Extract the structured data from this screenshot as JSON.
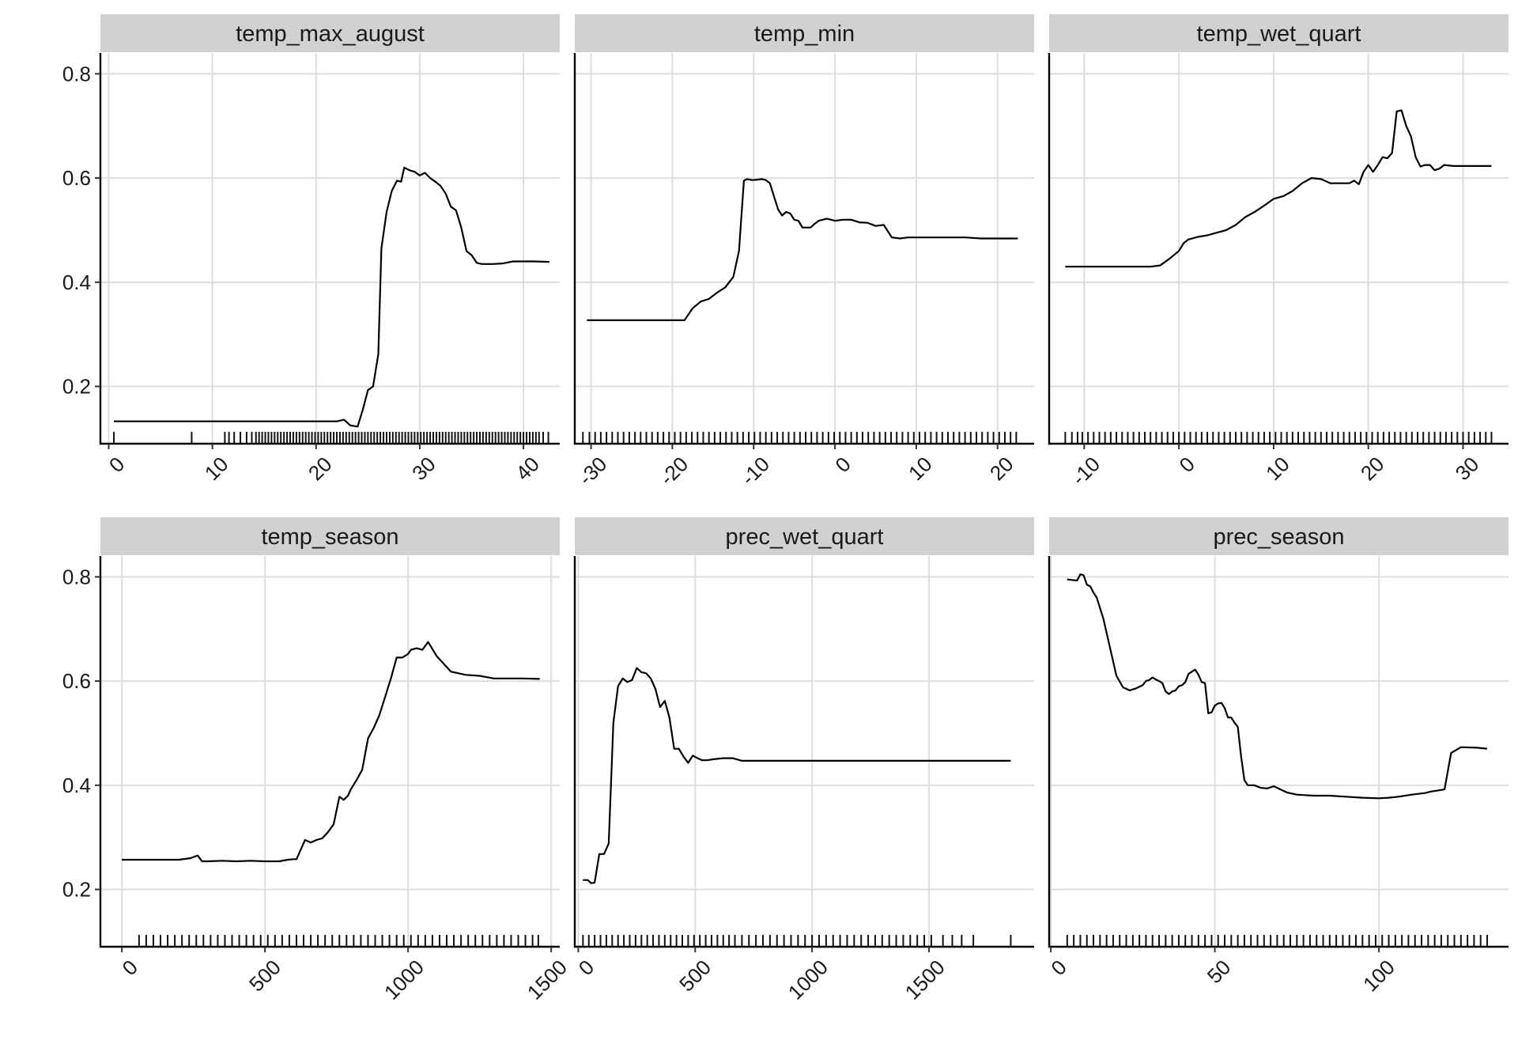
{
  "chart_data": [
    {
      "type": "line",
      "title": "temp_max_august",
      "xlabel": "",
      "ylabel": "",
      "xlim": [
        -0.8,
        43.5
      ],
      "ylim": [
        0.09,
        0.84
      ],
      "xticks": [
        0,
        10,
        20,
        30,
        40
      ],
      "yticks": [
        0.2,
        0.4,
        0.6,
        0.8
      ],
      "ytick_labels": [
        "0.2",
        "0.4",
        "0.6",
        "0.8"
      ],
      "grid": true,
      "x": [
        0.5,
        5,
        10,
        15,
        20,
        22,
        22.7,
        23.3,
        24,
        24.5,
        25,
        25.5,
        26,
        26.3,
        26.8,
        27.3,
        27.8,
        28.2,
        28.5,
        29,
        29.5,
        30,
        30.5,
        31,
        31.5,
        32,
        32.5,
        33,
        33.5,
        34,
        34.5,
        35,
        35.5,
        36,
        37,
        38,
        39,
        40,
        41,
        42.5
      ],
      "y": [
        0.133,
        0.133,
        0.133,
        0.133,
        0.133,
        0.133,
        0.136,
        0.125,
        0.123,
        0.155,
        0.193,
        0.2,
        0.262,
        0.465,
        0.535,
        0.575,
        0.595,
        0.593,
        0.62,
        0.615,
        0.612,
        0.605,
        0.61,
        0.6,
        0.593,
        0.585,
        0.57,
        0.545,
        0.538,
        0.505,
        0.46,
        0.452,
        0.437,
        0.435,
        0.435,
        0.436,
        0.44,
        0.44,
        0.44,
        0.439
      ],
      "rug": [
        0.5,
        8,
        11.2,
        11.6,
        12.1,
        12.7,
        13.3,
        13.8,
        14.2,
        14.5,
        14.8,
        15.1,
        15.4,
        15.7,
        16,
        16.3,
        16.6,
        16.9,
        17.2,
        17.5,
        17.8,
        18.1,
        18.4,
        18.7,
        19,
        19.3,
        19.6,
        19.9,
        20.2,
        20.5,
        20.8,
        21.1,
        21.4,
        21.7,
        22,
        22.3,
        22.6,
        22.9,
        23.2,
        23.5,
        23.8,
        24.1,
        24.4,
        24.7,
        25,
        25.3,
        25.6,
        25.9,
        26.2,
        26.5,
        26.8,
        27.1,
        27.4,
        27.7,
        28,
        28.3,
        28.6,
        28.9,
        29.2,
        29.5,
        29.8,
        30.1,
        30.4,
        30.7,
        31,
        31.3,
        31.6,
        31.9,
        32.2,
        32.5,
        32.8,
        33.1,
        33.4,
        33.7,
        34,
        34.3,
        34.6,
        34.9,
        35.2,
        35.5,
        35.8,
        36.1,
        36.4,
        36.7,
        37,
        37.3,
        37.6,
        37.9,
        38.2,
        38.5,
        38.8,
        39.1,
        39.4,
        39.7,
        40,
        40.3,
        40.6,
        40.9,
        41.2,
        41.5,
        41.9,
        42.4
      ]
    },
    {
      "type": "line",
      "title": "temp_min",
      "xlabel": "",
      "ylabel": "",
      "xlim": [
        -32,
        24.5
      ],
      "ylim": [
        0.09,
        0.84
      ],
      "xticks": [
        -30,
        -20,
        -10,
        0,
        10,
        20
      ],
      "yticks": [
        0.2,
        0.4,
        0.6,
        0.8
      ],
      "ytick_labels": [
        "0.2",
        "0.4",
        "0.6",
        "0.8"
      ],
      "grid": true,
      "x": [
        -30.5,
        -26,
        -22,
        -18.5,
        -17.5,
        -16.5,
        -15.5,
        -14.5,
        -13.5,
        -12.5,
        -11.8,
        -11.2,
        -10.8,
        -10.2,
        -9.5,
        -9,
        -8.5,
        -8,
        -7.5,
        -7,
        -6.5,
        -6,
        -5.5,
        -5,
        -4.5,
        -4,
        -3.5,
        -3,
        -2.5,
        -2,
        -1.5,
        -1,
        0,
        1,
        2,
        3,
        4,
        5,
        6,
        7,
        8,
        9,
        10,
        12,
        14,
        16,
        18,
        20,
        22.5
      ],
      "y": [
        0.327,
        0.327,
        0.327,
        0.327,
        0.35,
        0.363,
        0.368,
        0.38,
        0.39,
        0.41,
        0.46,
        0.595,
        0.598,
        0.596,
        0.597,
        0.598,
        0.596,
        0.59,
        0.565,
        0.54,
        0.528,
        0.535,
        0.532,
        0.52,
        0.518,
        0.505,
        0.505,
        0.505,
        0.512,
        0.518,
        0.52,
        0.522,
        0.518,
        0.52,
        0.52,
        0.515,
        0.514,
        0.508,
        0.51,
        0.486,
        0.484,
        0.486,
        0.486,
        0.486,
        0.486,
        0.486,
        0.484,
        0.484,
        0.484
      ],
      "rug": [
        -31,
        -30.2,
        -29.5,
        -28.8,
        -28.1,
        -27.4,
        -26.7,
        -26,
        -25.3,
        -24.6,
        -23.9,
        -23.2,
        -22.5,
        -21.8,
        -21.1,
        -20.4,
        -19.7,
        -19,
        -18.3,
        -17.6,
        -16.9,
        -16.2,
        -15.5,
        -14.8,
        -14.1,
        -13.4,
        -12.7,
        -12,
        -11.3,
        -10.6,
        -9.9,
        -9.2,
        -8.5,
        -7.8,
        -7.1,
        -6.4,
        -5.7,
        -5,
        -4.3,
        -3.6,
        -2.9,
        -2.2,
        -1.5,
        -0.8,
        -0.1,
        0.6,
        1.3,
        2,
        2.7,
        3.4,
        4.1,
        4.8,
        5.5,
        6.2,
        6.9,
        7.6,
        8.3,
        9,
        9.7,
        10.4,
        11.1,
        11.8,
        12.5,
        13.2,
        13.9,
        14.6,
        15.3,
        16,
        16.7,
        17.4,
        18.1,
        18.8,
        19.5,
        20.2,
        20.9,
        21.6,
        22.3
      ]
    },
    {
      "type": "line",
      "title": "temp_wet_quart",
      "xlabel": "",
      "ylabel": "",
      "xlim": [
        -13.7,
        34.8
      ],
      "ylim": [
        0.09,
        0.84
      ],
      "xticks": [
        -10,
        0,
        10,
        20,
        30
      ],
      "yticks": [
        0.2,
        0.4,
        0.6,
        0.8
      ],
      "ytick_labels": [
        "0.2",
        "0.4",
        "0.6",
        "0.8"
      ],
      "grid": true,
      "x": [
        -12,
        -8,
        -5,
        -3,
        -2,
        -1,
        0,
        0.5,
        1,
        2,
        3,
        4,
        5,
        6,
        7,
        8,
        9,
        10,
        11,
        12,
        13,
        14,
        15,
        16,
        17,
        18,
        18.5,
        19,
        19.5,
        20,
        20.5,
        21,
        21.5,
        22,
        22.5,
        23,
        23.5,
        24,
        24.5,
        25,
        25.5,
        26,
        26.5,
        27,
        27.5,
        28,
        29,
        30,
        31,
        32,
        33
      ],
      "y": [
        0.43,
        0.43,
        0.43,
        0.43,
        0.432,
        0.445,
        0.46,
        0.475,
        0.482,
        0.487,
        0.49,
        0.495,
        0.5,
        0.51,
        0.525,
        0.535,
        0.547,
        0.56,
        0.565,
        0.575,
        0.59,
        0.6,
        0.598,
        0.59,
        0.59,
        0.59,
        0.595,
        0.588,
        0.612,
        0.625,
        0.612,
        0.625,
        0.64,
        0.638,
        0.648,
        0.728,
        0.73,
        0.7,
        0.68,
        0.64,
        0.622,
        0.625,
        0.625,
        0.615,
        0.618,
        0.625,
        0.623,
        0.623,
        0.623,
        0.623,
        0.623
      ],
      "rug": [
        -12,
        -11.3,
        -10.7,
        -10.2,
        -9.6,
        -9,
        -8.4,
        -7.8,
        -7.2,
        -6.6,
        -6,
        -5.4,
        -4.8,
        -4.2,
        -3.6,
        -3,
        -2.4,
        -1.8,
        -1.2,
        -0.6,
        0,
        0.6,
        1.2,
        1.8,
        2.4,
        3,
        3.6,
        4.2,
        4.8,
        5.4,
        6,
        6.6,
        7.2,
        7.8,
        8.4,
        9,
        9.6,
        10.2,
        10.8,
        11.4,
        12,
        12.6,
        13.2,
        13.8,
        14.4,
        15,
        15.6,
        16.2,
        16.8,
        17.4,
        18,
        18.6,
        19.2,
        19.8,
        20.4,
        21,
        21.6,
        22.2,
        22.8,
        23.4,
        24,
        24.6,
        25.2,
        25.8,
        26.4,
        27,
        27.6,
        28.2,
        28.8,
        29.4,
        30,
        30.6,
        31.2,
        31.8,
        32.4,
        33
      ]
    },
    {
      "type": "line",
      "title": "temp_season",
      "xlabel": "",
      "ylabel": "",
      "xlim": [
        -75,
        1530
      ],
      "ylim": [
        0.09,
        0.84
      ],
      "xticks": [
        0,
        500,
        1000,
        1500
      ],
      "yticks": [
        0.2,
        0.4,
        0.6,
        0.8
      ],
      "ytick_labels": [
        "0.2",
        "0.4",
        "0.6",
        "0.8"
      ],
      "grid": true,
      "x": [
        0,
        100,
        200,
        240,
        265,
        280,
        300,
        350,
        400,
        450,
        500,
        550,
        580,
        600,
        610,
        640,
        660,
        680,
        700,
        720,
        740,
        760,
        775,
        790,
        800,
        820,
        840,
        860,
        880,
        900,
        920,
        940,
        960,
        980,
        1000,
        1010,
        1030,
        1050,
        1070,
        1100,
        1150,
        1200,
        1250,
        1300,
        1400,
        1460
      ],
      "y": [
        0.257,
        0.257,
        0.257,
        0.26,
        0.265,
        0.254,
        0.254,
        0.255,
        0.254,
        0.255,
        0.254,
        0.254,
        0.257,
        0.258,
        0.258,
        0.295,
        0.29,
        0.295,
        0.298,
        0.31,
        0.325,
        0.378,
        0.372,
        0.38,
        0.392,
        0.41,
        0.43,
        0.49,
        0.51,
        0.535,
        0.57,
        0.605,
        0.645,
        0.645,
        0.652,
        0.66,
        0.663,
        0.66,
        0.675,
        0.648,
        0.618,
        0.612,
        0.61,
        0.605,
        0.605,
        0.604
      ],
      "rug": [
        60,
        85,
        110,
        135,
        160,
        185,
        210,
        235,
        260,
        285,
        310,
        335,
        360,
        385,
        410,
        435,
        460,
        485,
        510,
        535,
        560,
        585,
        610,
        635,
        660,
        685,
        710,
        735,
        760,
        785,
        810,
        835,
        860,
        885,
        910,
        935,
        960,
        985,
        1010,
        1035,
        1060,
        1085,
        1110,
        1135,
        1160,
        1185,
        1210,
        1235,
        1260,
        1285,
        1310,
        1335,
        1360,
        1385,
        1410,
        1435,
        1455
      ]
    },
    {
      "type": "line",
      "title": "prec_wet_quart",
      "xlabel": "",
      "ylabel": "",
      "xlim": [
        -15,
        1950
      ],
      "ylim": [
        0.09,
        0.84
      ],
      "xticks": [
        0,
        500,
        1000,
        1500
      ],
      "yticks": [
        0.2,
        0.4,
        0.6,
        0.8
      ],
      "ytick_labels": [
        "0.2",
        "0.4",
        "0.6",
        "0.8"
      ],
      "grid": true,
      "x": [
        20,
        40,
        55,
        70,
        90,
        110,
        130,
        150,
        170,
        190,
        210,
        230,
        250,
        270,
        290,
        310,
        330,
        350,
        370,
        390,
        410,
        430,
        450,
        470,
        490,
        510,
        530,
        550,
        580,
        620,
        660,
        700,
        800,
        1000,
        1200,
        1400,
        1600,
        1850
      ],
      "y": [
        0.218,
        0.218,
        0.212,
        0.213,
        0.268,
        0.268,
        0.288,
        0.52,
        0.59,
        0.605,
        0.598,
        0.602,
        0.625,
        0.617,
        0.615,
        0.605,
        0.585,
        0.55,
        0.562,
        0.53,
        0.47,
        0.47,
        0.455,
        0.443,
        0.457,
        0.452,
        0.448,
        0.448,
        0.45,
        0.452,
        0.452,
        0.447,
        0.447,
        0.447,
        0.447,
        0.447,
        0.447,
        0.447
      ],
      "rug": [
        20,
        45,
        70,
        95,
        120,
        145,
        170,
        195,
        220,
        245,
        270,
        295,
        320,
        345,
        370,
        395,
        420,
        445,
        470,
        495,
        520,
        545,
        570,
        595,
        620,
        645,
        670,
        700,
        730,
        760,
        790,
        820,
        850,
        880,
        910,
        940,
        970,
        1000,
        1030,
        1060,
        1090,
        1120,
        1150,
        1180,
        1210,
        1240,
        1270,
        1300,
        1330,
        1360,
        1390,
        1420,
        1450,
        1480,
        1510,
        1560,
        1600,
        1640,
        1690,
        1850
      ]
    },
    {
      "type": "line",
      "title": "prec_season",
      "xlabel": "",
      "ylabel": "",
      "xlim": [
        -0.5,
        139.5
      ],
      "ylim": [
        0.09,
        0.84
      ],
      "xticks": [
        0,
        50,
        100
      ],
      "yticks": [
        0.2,
        0.4,
        0.6,
        0.8
      ],
      "ytick_labels": [
        "0.2",
        "0.4",
        "0.6",
        "0.8"
      ],
      "grid": true,
      "x": [
        5,
        6.5,
        8,
        9,
        10,
        11,
        12,
        13,
        14,
        16,
        18,
        20,
        22,
        24,
        26,
        28,
        29,
        30,
        31,
        32,
        33,
        34,
        35,
        36,
        37,
        38,
        39,
        40,
        41,
        42,
        43,
        44,
        45,
        46,
        47,
        48,
        49,
        50,
        51,
        52,
        53,
        54,
        55,
        56,
        57,
        58,
        59,
        60,
        62,
        64,
        66,
        68,
        70,
        72,
        75,
        80,
        85,
        90,
        95,
        100,
        103,
        106,
        110,
        114,
        116,
        118,
        120,
        122,
        125,
        130,
        133
      ],
      "y": [
        0.795,
        0.794,
        0.793,
        0.805,
        0.803,
        0.785,
        0.782,
        0.77,
        0.76,
        0.72,
        0.665,
        0.61,
        0.588,
        0.582,
        0.586,
        0.592,
        0.6,
        0.602,
        0.607,
        0.603,
        0.6,
        0.596,
        0.58,
        0.575,
        0.58,
        0.582,
        0.59,
        0.592,
        0.598,
        0.614,
        0.618,
        0.622,
        0.612,
        0.598,
        0.596,
        0.538,
        0.54,
        0.553,
        0.557,
        0.558,
        0.548,
        0.53,
        0.53,
        0.52,
        0.512,
        0.455,
        0.41,
        0.4,
        0.4,
        0.395,
        0.394,
        0.398,
        0.392,
        0.386,
        0.382,
        0.38,
        0.38,
        0.378,
        0.376,
        0.375,
        0.376,
        0.378,
        0.382,
        0.385,
        0.388,
        0.39,
        0.392,
        0.462,
        0.473,
        0.472,
        0.47
      ],
      "rug": [
        5,
        7,
        9,
        11,
        13,
        15,
        17,
        19,
        21,
        23,
        25,
        27,
        29,
        31,
        33,
        35,
        37,
        39,
        41,
        43,
        45,
        47,
        49,
        51,
        53,
        55,
        57,
        59,
        61,
        63,
        65,
        67,
        69,
        71,
        73,
        75,
        77,
        79,
        81,
        83,
        85,
        87,
        89,
        91,
        93,
        95,
        97,
        99,
        101,
        103,
        105,
        107,
        109,
        111,
        113,
        115,
        117,
        119,
        121,
        123,
        125,
        127,
        129,
        131,
        133
      ]
    }
  ]
}
